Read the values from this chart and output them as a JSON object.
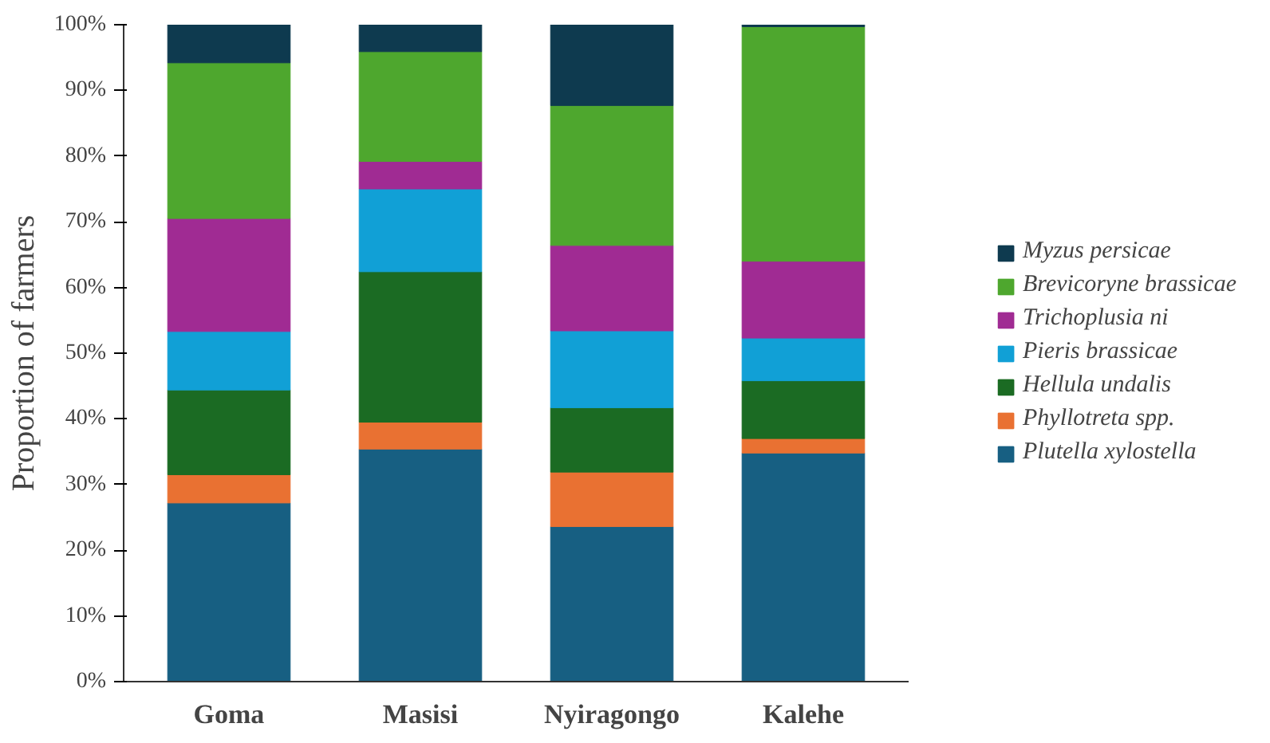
{
  "chart_data": {
    "type": "bar",
    "stacked": true,
    "ylabel": "Proportion of farmers",
    "categories": [
      "Goma",
      "Masisi",
      "Nyiragongo",
      "Kalehe"
    ],
    "ylim": [
      0,
      100
    ],
    "yticks": [
      {
        "value": 0,
        "label": "0%"
      },
      {
        "value": 10,
        "label": "10%"
      },
      {
        "value": 20,
        "label": "20%"
      },
      {
        "value": 30,
        "label": "30%"
      },
      {
        "value": 40,
        "label": "40%"
      },
      {
        "value": 50,
        "label": "50%"
      },
      {
        "value": 60,
        "label": "60%"
      },
      {
        "value": 70,
        "label": "70%"
      },
      {
        "value": 80,
        "label": "80%"
      },
      {
        "value": 90,
        "label": "90%"
      },
      {
        "value": 100,
        "label": "100%"
      }
    ],
    "grid": false,
    "legend": "right",
    "series": [
      {
        "name": "Plutella xylostella",
        "color": "#175f82",
        "values": [
          27.2,
          35.4,
          23.6,
          34.8
        ]
      },
      {
        "name": "Phyllotreta spp.",
        "color": "#e97132",
        "values": [
          4.3,
          4.1,
          8.3,
          2.2
        ]
      },
      {
        "name": "Hellula undalis",
        "color": "#1b6b23",
        "values": [
          12.9,
          22.9,
          9.8,
          8.8
        ]
      },
      {
        "name": "Pieris brassicae",
        "color": "#11a0d6",
        "values": [
          8.9,
          12.6,
          11.7,
          6.5
        ]
      },
      {
        "name": "Trichoplusia ni",
        "color": "#a02b93",
        "values": [
          17.2,
          4.2,
          13.0,
          11.7
        ]
      },
      {
        "name": "Brevicoryne brassicae",
        "color": "#4ea72e",
        "values": [
          23.7,
          16.7,
          21.3,
          35.7
        ]
      },
      {
        "name": "Myzus persicae",
        "color": "#0e3a4f",
        "values": [
          5.8,
          4.1,
          12.3,
          0.3
        ]
      }
    ]
  }
}
